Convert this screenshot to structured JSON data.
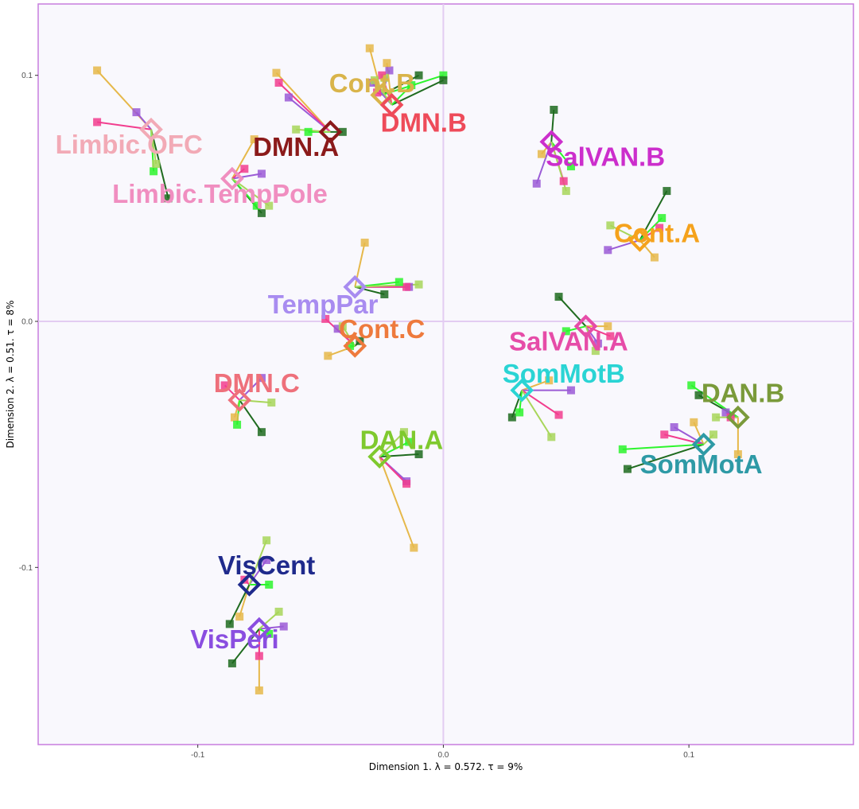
{
  "chart_data": {
    "type": "scatter",
    "xlabel": "Dimension 1.  λ = 0.572.  τ = 9%",
    "ylabel": "Dimension 2.  λ = 0.51.  τ = 8%",
    "xlim": [
      -0.165,
      0.167
    ],
    "ylim": [
      -0.172,
      0.129
    ],
    "xticks": [
      -0.1,
      0.0,
      0.1
    ],
    "xtick_labels": [
      "-0.1",
      "0.0",
      "0.1"
    ],
    "yticks": [
      -0.1,
      0.0,
      0.1
    ],
    "ytick_labels": [
      "-0.1",
      "0.0",
      "0.1"
    ],
    "grid": false,
    "panel_background": "#f9f8fd",
    "panel_border": "#c77dde",
    "reference_lines": {
      "color": "#e3ccf2",
      "x": 0,
      "y": 0
    },
    "partial_colors": [
      "#e6b84a",
      "#9b5bd6",
      "#f23d8e",
      "#1f6b1f",
      "#2df52d",
      "#a8d65a"
    ],
    "networks": [
      {
        "name": "Limbic.OFC",
        "color": "#f2aab6",
        "x": -0.119,
        "y": 0.078,
        "label_x": -0.128,
        "label_y": 0.071,
        "partials": [
          [
            -0.141,
            0.102
          ],
          [
            -0.125,
            0.085
          ],
          [
            -0.141,
            0.081
          ],
          [
            -0.112,
            0.05
          ],
          [
            -0.118,
            0.061
          ],
          [
            -0.117,
            0.064
          ]
        ]
      },
      {
        "name": "Limbic.TempPole",
        "color": "#f08ec0",
        "x": -0.086,
        "y": 0.058,
        "label_x": -0.091,
        "label_y": 0.051,
        "partials": [
          [
            -0.077,
            0.074
          ],
          [
            -0.074,
            0.06
          ],
          [
            -0.081,
            0.062
          ],
          [
            -0.074,
            0.044
          ],
          [
            -0.076,
            0.047
          ],
          [
            -0.071,
            0.047
          ]
        ]
      },
      {
        "name": "DMN.A",
        "color": "#8b1a1a",
        "x": -0.046,
        "y": 0.077,
        "label_x": -0.06,
        "label_y": 0.07,
        "partials": [
          [
            -0.068,
            0.101
          ],
          [
            -0.063,
            0.091
          ],
          [
            -0.067,
            0.097
          ],
          [
            -0.041,
            0.077
          ],
          [
            -0.055,
            0.077
          ],
          [
            -0.06,
            0.078
          ]
        ]
      },
      {
        "name": "Cont.B",
        "color": "#d9b44a",
        "x": -0.025,
        "y": 0.092,
        "label_x": -0.029,
        "label_y": 0.096,
        "partials": [
          [
            -0.03,
            0.111
          ],
          [
            -0.022,
            0.102
          ],
          [
            -0.027,
            0.093
          ],
          [
            -0.01,
            0.1
          ],
          [
            0.0,
            0.1
          ],
          [
            -0.024,
            0.099
          ]
        ]
      },
      {
        "name": "DMN.B",
        "color": "#ee4b5a",
        "x": -0.021,
        "y": 0.088,
        "label_x": -0.008,
        "label_y": 0.08,
        "partials": [
          [
            -0.023,
            0.105
          ],
          [
            -0.029,
            0.097
          ],
          [
            -0.025,
            0.1
          ],
          [
            0.0,
            0.098
          ],
          [
            -0.013,
            0.096
          ],
          [
            -0.028,
            0.098
          ]
        ]
      },
      {
        "name": "SalVAN.B",
        "color": "#cc2ecc",
        "x": 0.044,
        "y": 0.073,
        "label_x": 0.066,
        "label_y": 0.066,
        "partials": [
          [
            0.04,
            0.068
          ],
          [
            0.038,
            0.056
          ],
          [
            0.049,
            0.057
          ],
          [
            0.045,
            0.086
          ],
          [
            0.052,
            0.063
          ],
          [
            0.05,
            0.053
          ]
        ]
      },
      {
        "name": "Cont.A",
        "color": "#f5a21c",
        "x": 0.08,
        "y": 0.033,
        "label_x": 0.087,
        "label_y": 0.035,
        "partials": [
          [
            0.086,
            0.026
          ],
          [
            0.067,
            0.029
          ],
          [
            0.088,
            0.038
          ],
          [
            0.091,
            0.053
          ],
          [
            0.089,
            0.042
          ],
          [
            0.068,
            0.039
          ]
        ]
      },
      {
        "name": "TempPar",
        "color": "#a88cf0",
        "x": -0.036,
        "y": 0.014,
        "label_x": -0.049,
        "label_y": 0.006,
        "partials": [
          [
            -0.032,
            0.032
          ],
          [
            -0.014,
            0.014
          ],
          [
            -0.015,
            0.014
          ],
          [
            -0.024,
            0.011
          ],
          [
            -0.018,
            0.016
          ],
          [
            -0.01,
            0.015
          ]
        ]
      },
      {
        "name": "Cont.C",
        "color": "#ee7a3d",
        "x": -0.036,
        "y": -0.01,
        "label_x": -0.025,
        "label_y": -0.004,
        "partials": [
          [
            -0.047,
            -0.014
          ],
          [
            -0.043,
            -0.003
          ],
          [
            -0.048,
            0.001
          ],
          [
            -0.034,
            -0.008
          ],
          [
            -0.038,
            -0.01
          ],
          [
            -0.041,
            -0.002
          ]
        ]
      },
      {
        "name": "SalVAN.A",
        "color": "#e64ca8",
        "x": 0.058,
        "y": -0.002,
        "label_x": 0.051,
        "label_y": -0.009,
        "partials": [
          [
            0.067,
            -0.002
          ],
          [
            0.063,
            -0.009
          ],
          [
            0.068,
            -0.006
          ],
          [
            0.047,
            0.01
          ],
          [
            0.05,
            -0.004
          ],
          [
            0.062,
            -0.012
          ]
        ]
      },
      {
        "name": "SomMotB",
        "color": "#2ad4d4",
        "x": 0.032,
        "y": -0.028,
        "label_x": 0.049,
        "label_y": -0.022,
        "partials": [
          [
            0.043,
            -0.024
          ],
          [
            0.052,
            -0.028
          ],
          [
            0.047,
            -0.038
          ],
          [
            0.028,
            -0.039
          ],
          [
            0.031,
            -0.037
          ],
          [
            0.044,
            -0.047
          ]
        ]
      },
      {
        "name": "DMN.C",
        "color": "#ee707b",
        "x": -0.083,
        "y": -0.032,
        "label_x": -0.076,
        "label_y": -0.026,
        "partials": [
          [
            -0.085,
            -0.039
          ],
          [
            -0.074,
            -0.023
          ],
          [
            -0.089,
            -0.026
          ],
          [
            -0.074,
            -0.045
          ],
          [
            -0.084,
            -0.042
          ],
          [
            -0.07,
            -0.033
          ]
        ]
      },
      {
        "name": "DAN.B",
        "color": "#7a9a3a",
        "x": 0.12,
        "y": -0.039,
        "label_x": 0.122,
        "label_y": -0.03,
        "partials": [
          [
            0.12,
            -0.054
          ],
          [
            0.115,
            -0.037
          ],
          [
            0.117,
            -0.039
          ],
          [
            0.104,
            -0.03
          ],
          [
            0.101,
            -0.026
          ],
          [
            0.111,
            -0.039
          ]
        ]
      },
      {
        "name": "DAN.A",
        "color": "#7fc92e",
        "x": -0.026,
        "y": -0.055,
        "label_x": -0.017,
        "label_y": -0.049,
        "partials": [
          [
            -0.012,
            -0.092
          ],
          [
            -0.015,
            -0.065
          ],
          [
            -0.015,
            -0.066
          ],
          [
            -0.01,
            -0.054
          ],
          [
            -0.014,
            -0.049
          ],
          [
            -0.016,
            -0.045
          ]
        ]
      },
      {
        "name": "SomMotA",
        "color": "#2e9aa6",
        "x": 0.106,
        "y": -0.05,
        "label_x": 0.105,
        "label_y": -0.059,
        "partials": [
          [
            0.102,
            -0.041
          ],
          [
            0.094,
            -0.043
          ],
          [
            0.09,
            -0.046
          ],
          [
            0.075,
            -0.06
          ],
          [
            0.073,
            -0.052
          ],
          [
            0.11,
            -0.046
          ]
        ]
      },
      {
        "name": "VisCent",
        "color": "#1f2a8c",
        "x": -0.079,
        "y": -0.107,
        "label_x": -0.072,
        "label_y": -0.1,
        "partials": [
          [
            -0.083,
            -0.12
          ],
          [
            -0.072,
            -0.097
          ],
          [
            -0.081,
            -0.105
          ],
          [
            -0.087,
            -0.123
          ],
          [
            -0.071,
            -0.107
          ],
          [
            -0.072,
            -0.089
          ]
        ]
      },
      {
        "name": "VisPeri",
        "color": "#8a4ee0",
        "x": -0.075,
        "y": -0.125,
        "label_x": -0.085,
        "label_y": -0.13,
        "partials": [
          [
            -0.075,
            -0.15
          ],
          [
            -0.065,
            -0.124
          ],
          [
            -0.075,
            -0.136
          ],
          [
            -0.086,
            -0.139
          ],
          [
            -0.071,
            -0.127
          ],
          [
            -0.067,
            -0.118
          ]
        ]
      }
    ]
  }
}
